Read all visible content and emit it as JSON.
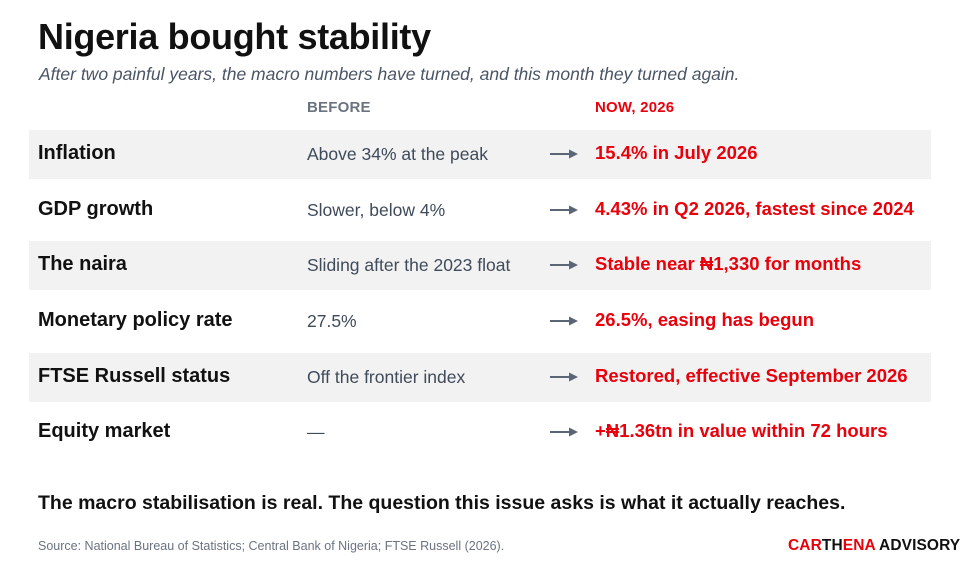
{
  "header": {
    "title": "Nigeria bought stability",
    "subtitle": "After two painful years, the macro numbers have turned, and this month they turned again."
  },
  "columns": {
    "before": "BEFORE",
    "now": "NOW, 2026"
  },
  "rows": [
    {
      "metric": "Inflation",
      "before": "Above 34% at the peak",
      "now": "15.4% in July 2026"
    },
    {
      "metric": "GDP growth",
      "before": "Slower, below 4%",
      "now": "4.43% in Q2 2026, fastest since 2024"
    },
    {
      "metric": "The naira",
      "before": "Sliding after the 2023 float",
      "now": "Stable near ₦1,330 for months"
    },
    {
      "metric": "Monetary policy rate",
      "before": "27.5%",
      "now": "26.5%, easing has begun"
    },
    {
      "metric": "FTSE Russell status",
      "before": "Off the frontier index",
      "now": "Restored, effective September 2026"
    },
    {
      "metric": "Equity market",
      "before": "—",
      "now": "+₦1.36tn in value within 72 hours"
    }
  ],
  "takeaway": "The macro stabilisation is real. The question this issue asks is what it actually reaches.",
  "source": "Source: National Bureau of Statistics; Central Bank of Nigeria; FTSE Russell (2026).",
  "brand": {
    "part1": "CAR",
    "part2": "TH",
    "part3": "ENA",
    "part4": " ADVISORY"
  },
  "colors": {
    "accent": "#e8000b",
    "text": "#111111",
    "muted": "#6b7280",
    "row_shade": "#f2f2f2",
    "arrow": "#5a6575"
  },
  "icons": {
    "row_arrow": "right-arrow-icon"
  }
}
